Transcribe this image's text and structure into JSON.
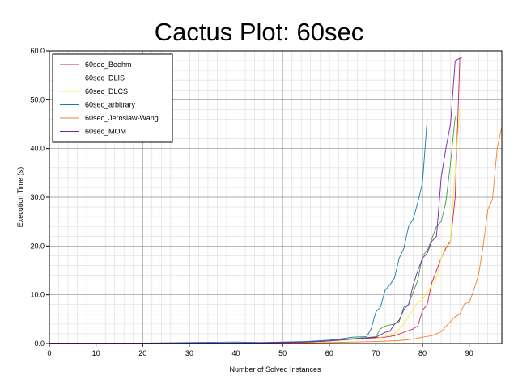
{
  "chart_data": {
    "type": "line",
    "title": "Cactus Plot: 60sec",
    "xlabel": "Number of Solved Instances",
    "ylabel": "Execution Time (s)",
    "xlim": [
      0,
      97
    ],
    "ylim": [
      0,
      60
    ],
    "x_ticks": [
      0,
      10,
      20,
      30,
      40,
      50,
      60,
      70,
      80,
      90
    ],
    "y_ticks": [
      0,
      10,
      20,
      30,
      40,
      50,
      60
    ],
    "y_tick_labels": [
      "0.0",
      "10.0",
      "20.0",
      "30.0",
      "40.0",
      "50.0",
      "60.0"
    ],
    "grid": true,
    "minor_grid": true,
    "legend_position": "top-left",
    "series": [
      {
        "name": "60sec_Boehm",
        "color": "#c8205a",
        "points": [
          [
            0,
            0.1
          ],
          [
            20,
            0.1
          ],
          [
            40,
            0.1
          ],
          [
            50,
            0.2
          ],
          [
            55,
            0.3
          ],
          [
            60,
            0.5
          ],
          [
            65,
            0.9
          ],
          [
            68,
            1.0
          ],
          [
            70,
            1.2
          ],
          [
            72,
            1.3
          ],
          [
            74,
            1.6
          ],
          [
            76,
            2.3
          ],
          [
            78,
            3.0
          ],
          [
            79,
            3.6
          ],
          [
            80,
            6.8
          ],
          [
            81,
            8.0
          ],
          [
            82,
            12.5
          ],
          [
            83,
            15.0
          ],
          [
            84,
            17.5
          ],
          [
            85,
            19.5
          ],
          [
            86,
            21.0
          ],
          [
            87,
            30.0
          ],
          [
            88,
            58.5
          ],
          [
            88.5,
            58.7
          ]
        ]
      },
      {
        "name": "60sec_DLIS",
        "color": "#3aa33a",
        "points": [
          [
            0,
            0.1
          ],
          [
            20,
            0.1
          ],
          [
            40,
            0.1
          ],
          [
            50,
            0.2
          ],
          [
            55,
            0.4
          ],
          [
            60,
            0.6
          ],
          [
            65,
            1.0
          ],
          [
            68,
            1.2
          ],
          [
            70,
            1.4
          ],
          [
            71,
            3.0
          ],
          [
            72,
            3.6
          ],
          [
            74,
            4.0
          ],
          [
            75,
            4.5
          ],
          [
            76,
            7.5
          ],
          [
            77,
            8.0
          ],
          [
            78,
            10.5
          ],
          [
            79,
            13.0
          ],
          [
            80,
            18.0
          ],
          [
            81,
            19.0
          ],
          [
            82,
            21.5
          ],
          [
            83,
            24.0
          ],
          [
            84,
            25.0
          ],
          [
            85,
            29.0
          ],
          [
            86,
            37.0
          ],
          [
            87,
            46.5
          ]
        ]
      },
      {
        "name": "60sec_DLCS",
        "color": "#ffe640",
        "points": [
          [
            0,
            0.1
          ],
          [
            20,
            0.1
          ],
          [
            40,
            0.1
          ],
          [
            50,
            0.2
          ],
          [
            55,
            0.3
          ],
          [
            60,
            0.5
          ],
          [
            65,
            0.8
          ],
          [
            70,
            1.0
          ],
          [
            72,
            1.5
          ],
          [
            74,
            2.0
          ],
          [
            75,
            3.0
          ],
          [
            76,
            4.0
          ],
          [
            77,
            5.5
          ],
          [
            78,
            7.0
          ],
          [
            79,
            8.5
          ],
          [
            80,
            9.0
          ],
          [
            81,
            10.5
          ],
          [
            82,
            12.0
          ],
          [
            83,
            13.5
          ],
          [
            84,
            17.5
          ],
          [
            85,
            20.0
          ],
          [
            86,
            20.5
          ],
          [
            87,
            36.0
          ],
          [
            88,
            48.0
          ]
        ]
      },
      {
        "name": "60sec_arbitrary",
        "color": "#1478b4",
        "points": [
          [
            0,
            0.1
          ],
          [
            20,
            0.1
          ],
          [
            40,
            0.3
          ],
          [
            45,
            0.2
          ],
          [
            50,
            0.3
          ],
          [
            55,
            0.4
          ],
          [
            60,
            0.7
          ],
          [
            63,
            1.0
          ],
          [
            65,
            1.3
          ],
          [
            68,
            1.4
          ],
          [
            69,
            3.0
          ],
          [
            70,
            6.5
          ],
          [
            71,
            7.5
          ],
          [
            72,
            11.0
          ],
          [
            73,
            12.0
          ],
          [
            74,
            13.5
          ],
          [
            75,
            17.5
          ],
          [
            76,
            19.5
          ],
          [
            77,
            24.0
          ],
          [
            78,
            25.5
          ],
          [
            79,
            29.0
          ],
          [
            80,
            33.0
          ],
          [
            81,
            46.0
          ]
        ]
      },
      {
        "name": "60sec_Jeroslaw-Wang",
        "color": "#f5822a",
        "points": [
          [
            0,
            0.1
          ],
          [
            20,
            0.1
          ],
          [
            40,
            0.1
          ],
          [
            50,
            0.1
          ],
          [
            60,
            0.2
          ],
          [
            65,
            0.3
          ],
          [
            70,
            0.4
          ],
          [
            75,
            0.6
          ],
          [
            78,
            0.9
          ],
          [
            80,
            1.3
          ],
          [
            82,
            1.6
          ],
          [
            84,
            2.4
          ],
          [
            85,
            3.5
          ],
          [
            86,
            4.5
          ],
          [
            87,
            5.5
          ],
          [
            88,
            6.0
          ],
          [
            89,
            8.2
          ],
          [
            90,
            8.4
          ],
          [
            91,
            11.0
          ],
          [
            92,
            14.0
          ],
          [
            93,
            20.0
          ],
          [
            94,
            27.5
          ],
          [
            95,
            29.5
          ],
          [
            96,
            40.0
          ],
          [
            97,
            44.5
          ]
        ]
      },
      {
        "name": "60sec_MOM",
        "color": "#7a1fa8",
        "points": [
          [
            0,
            0.1
          ],
          [
            20,
            0.1
          ],
          [
            40,
            0.1
          ],
          [
            50,
            0.2
          ],
          [
            55,
            0.3
          ],
          [
            60,
            0.5
          ],
          [
            65,
            0.9
          ],
          [
            70,
            1.3
          ],
          [
            72,
            2.3
          ],
          [
            73,
            2.5
          ],
          [
            74,
            4.0
          ],
          [
            75,
            4.8
          ],
          [
            76,
            7.0
          ],
          [
            77,
            8.0
          ],
          [
            78,
            12.0
          ],
          [
            79,
            15.0
          ],
          [
            80,
            17.5
          ],
          [
            81,
            18.5
          ],
          [
            82,
            21.0
          ],
          [
            83,
            22.0
          ],
          [
            84,
            34.0
          ],
          [
            85,
            40.0
          ],
          [
            86,
            45.0
          ],
          [
            87,
            58.0
          ],
          [
            88,
            58.5
          ]
        ]
      }
    ]
  }
}
